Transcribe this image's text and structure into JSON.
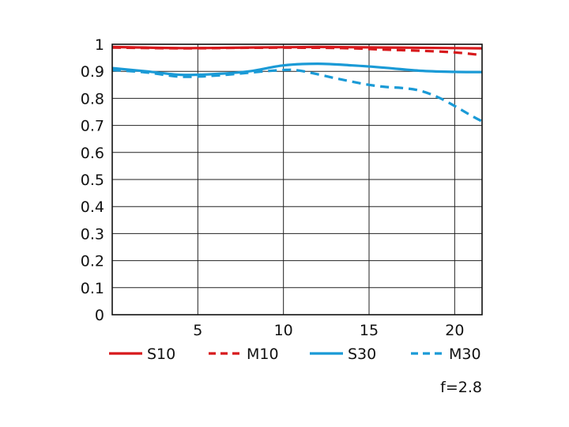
{
  "chart_data": {
    "type": "line",
    "title": "",
    "xlabel": "",
    "ylabel": "",
    "xlim": [
      0,
      21.6
    ],
    "ylim": [
      0,
      1
    ],
    "x_ticks": [
      5,
      10,
      15,
      20
    ],
    "y_ticks": [
      0,
      0.1,
      0.2,
      0.3,
      0.4,
      0.5,
      0.6,
      0.7,
      0.8,
      0.9,
      1
    ],
    "x_tick_labels": [
      "5",
      "10",
      "15",
      "20"
    ],
    "y_tick_labels": [
      "0",
      "0.1",
      "0.2",
      "0.3",
      "0.4",
      "0.5",
      "0.6",
      "0.7",
      "0.8",
      "0.9",
      "1"
    ],
    "grid": true,
    "legend_position": "bottom",
    "annotation": "f=2.8",
    "series": [
      {
        "name": "S10",
        "color": "#d7191c",
        "style": "solid",
        "x": [
          0,
          4,
          8,
          12,
          16,
          20,
          21.6
        ],
        "y": [
          0.99,
          0.986,
          0.988,
          0.99,
          0.988,
          0.986,
          0.985
        ]
      },
      {
        "name": "M10",
        "color": "#d7191c",
        "style": "dashed",
        "x": [
          0,
          4,
          8,
          12,
          14,
          16,
          18,
          20,
          21.6
        ],
        "y": [
          0.988,
          0.985,
          0.987,
          0.987,
          0.985,
          0.98,
          0.976,
          0.97,
          0.96
        ]
      },
      {
        "name": "S30",
        "color": "#1a9ad6",
        "style": "solid",
        "x": [
          0,
          2,
          4,
          6,
          8,
          10,
          12,
          14,
          16,
          18,
          20,
          21.6
        ],
        "y": [
          0.912,
          0.9,
          0.887,
          0.89,
          0.9,
          0.922,
          0.928,
          0.922,
          0.913,
          0.902,
          0.898,
          0.897
        ]
      },
      {
        "name": "M30",
        "color": "#1a9ad6",
        "style": "dashed",
        "x": [
          0,
          2,
          4,
          6,
          8,
          10,
          11,
          13,
          14,
          15,
          16,
          17,
          18,
          19,
          20,
          21,
          21.6
        ],
        "y": [
          0.905,
          0.896,
          0.88,
          0.884,
          0.895,
          0.905,
          0.902,
          0.875,
          0.862,
          0.85,
          0.842,
          0.838,
          0.828,
          0.805,
          0.772,
          0.735,
          0.715
        ]
      }
    ]
  }
}
